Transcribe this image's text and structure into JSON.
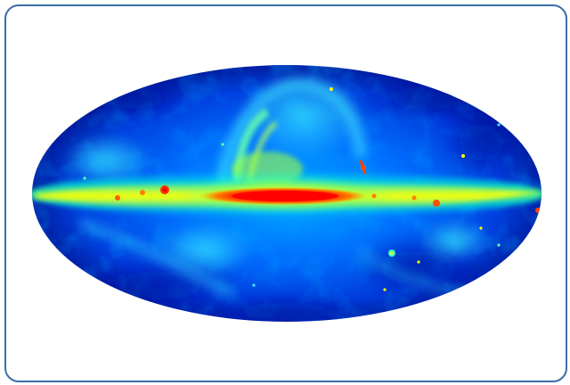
{
  "figure": {
    "kind": "all-sky map (Mollweide projection)",
    "colormap": [
      "#00008f",
      "#0040ff",
      "#00c0ff",
      "#40ffbf",
      "#ffff00",
      "#ff8000",
      "#ff0000"
    ],
    "frame_color": "#3a6ea5"
  }
}
